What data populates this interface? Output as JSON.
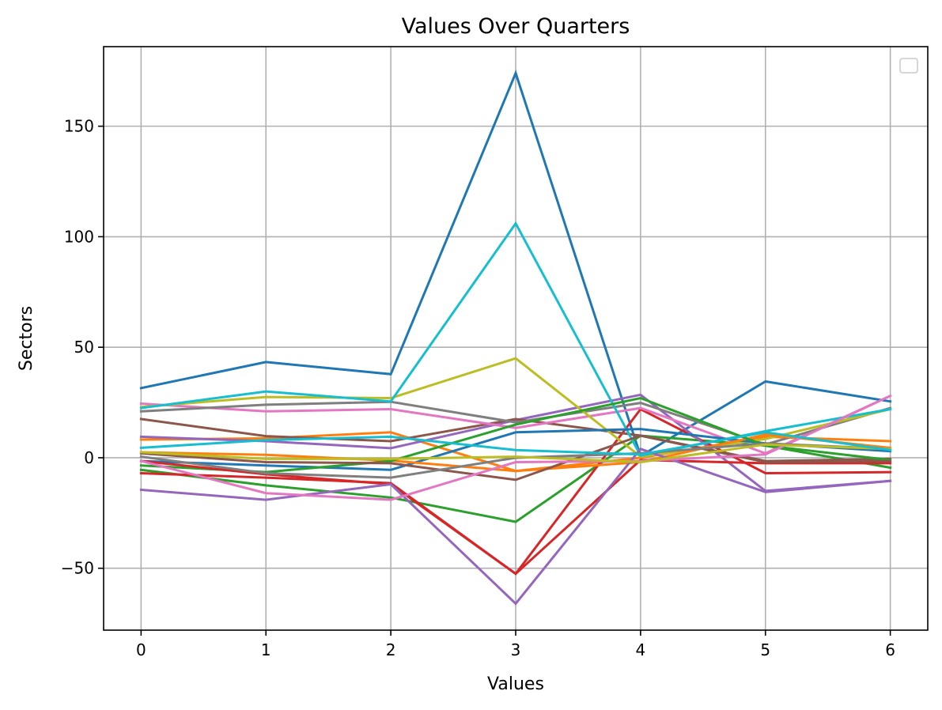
{
  "chart_data": {
    "type": "line",
    "title": "Values Over Quarters",
    "xlabel": "Values",
    "ylabel": "Sectors",
    "x": [
      0,
      1,
      2,
      3,
      4,
      5,
      6
    ],
    "xlim": [
      -0.3,
      6.3
    ],
    "ylim": [
      -78,
      186
    ],
    "xticks": [
      "0",
      "1",
      "2",
      "3",
      "4",
      "5",
      "6"
    ],
    "yticks": [
      {
        "value": -50,
        "label": "−50"
      },
      {
        "value": 0,
        "label": "0"
      },
      {
        "value": 50,
        "label": "50"
      },
      {
        "value": 100,
        "label": "100"
      },
      {
        "value": 150,
        "label": "150"
      }
    ],
    "grid": true,
    "legend": {
      "placement": "top-right",
      "entries": []
    },
    "series": [
      {
        "color": "#1f77b4",
        "values": [
          31.5,
          43.3,
          37.8,
          174,
          0.8,
          34.5,
          25.5
        ]
      },
      {
        "color": "#ff7f0e",
        "values": [
          8.2,
          8.8,
          11.5,
          -6,
          0,
          9.5,
          7.5
        ]
      },
      {
        "color": "#2ca02c",
        "values": [
          -5.5,
          -12.5,
          -18,
          -29,
          10,
          5.5,
          -4.5
        ]
      },
      {
        "color": "#d62728",
        "values": [
          -7,
          -9,
          -11.5,
          -52.5,
          22,
          -7,
          -6.5
        ]
      },
      {
        "color": "#9467bd",
        "values": [
          9.5,
          7.5,
          4.3,
          17,
          28.5,
          -15,
          -10.5
        ]
      },
      {
        "color": "#8c564b",
        "values": [
          17.5,
          9.8,
          7.5,
          17.5,
          10,
          -1.5,
          -0.5
        ]
      },
      {
        "color": "#e377c2",
        "values": [
          24.5,
          21,
          22,
          13.5,
          22.5,
          2,
          28
        ]
      },
      {
        "color": "#7f7f7f",
        "values": [
          21,
          24,
          25.3,
          16,
          24.8,
          6,
          22.5
        ]
      },
      {
        "color": "#bcbd22",
        "values": [
          23,
          27.5,
          27,
          45,
          0.5,
          8.5,
          22
        ]
      },
      {
        "color": "#17becf",
        "values": [
          22.5,
          30,
          25.5,
          106,
          1,
          12,
          22
        ]
      },
      {
        "color": "#1f77b4",
        "values": [
          -1.5,
          -3.5,
          -5.5,
          11.5,
          13,
          6.5,
          3
        ]
      },
      {
        "color": "#ff7f0e",
        "values": [
          2.5,
          1.3,
          -1.3,
          -6,
          -2,
          10.5,
          4.5
        ]
      },
      {
        "color": "#2ca02c",
        "values": [
          -3.5,
          -6.5,
          -1.5,
          15,
          27,
          5.5,
          -1
        ]
      },
      {
        "color": "#d62728",
        "values": [
          -1.5,
          -7.5,
          -12,
          -52.5,
          -1,
          -2.5,
          -2.5
        ]
      },
      {
        "color": "#9467bd",
        "values": [
          -14.5,
          -19,
          -12,
          -66,
          4,
          -15.5,
          -10.5
        ]
      },
      {
        "color": "#8c564b",
        "values": [
          2,
          -2,
          -2.5,
          -10,
          10,
          -2,
          -1.5
        ]
      },
      {
        "color": "#e377c2",
        "values": [
          -1.5,
          -16,
          -19,
          -2,
          -1.5,
          1.5,
          28
        ]
      },
      {
        "color": "#7f7f7f",
        "values": [
          0.5,
          -7,
          -9,
          0,
          2,
          6.5,
          4
        ]
      },
      {
        "color": "#bcbd22",
        "values": [
          2.5,
          -0.5,
          -0.5,
          0.5,
          -2,
          6,
          4
        ]
      },
      {
        "color": "#17becf",
        "values": [
          4.5,
          8,
          9.5,
          3.5,
          1.5,
          11.5,
          3.5
        ]
      }
    ]
  }
}
